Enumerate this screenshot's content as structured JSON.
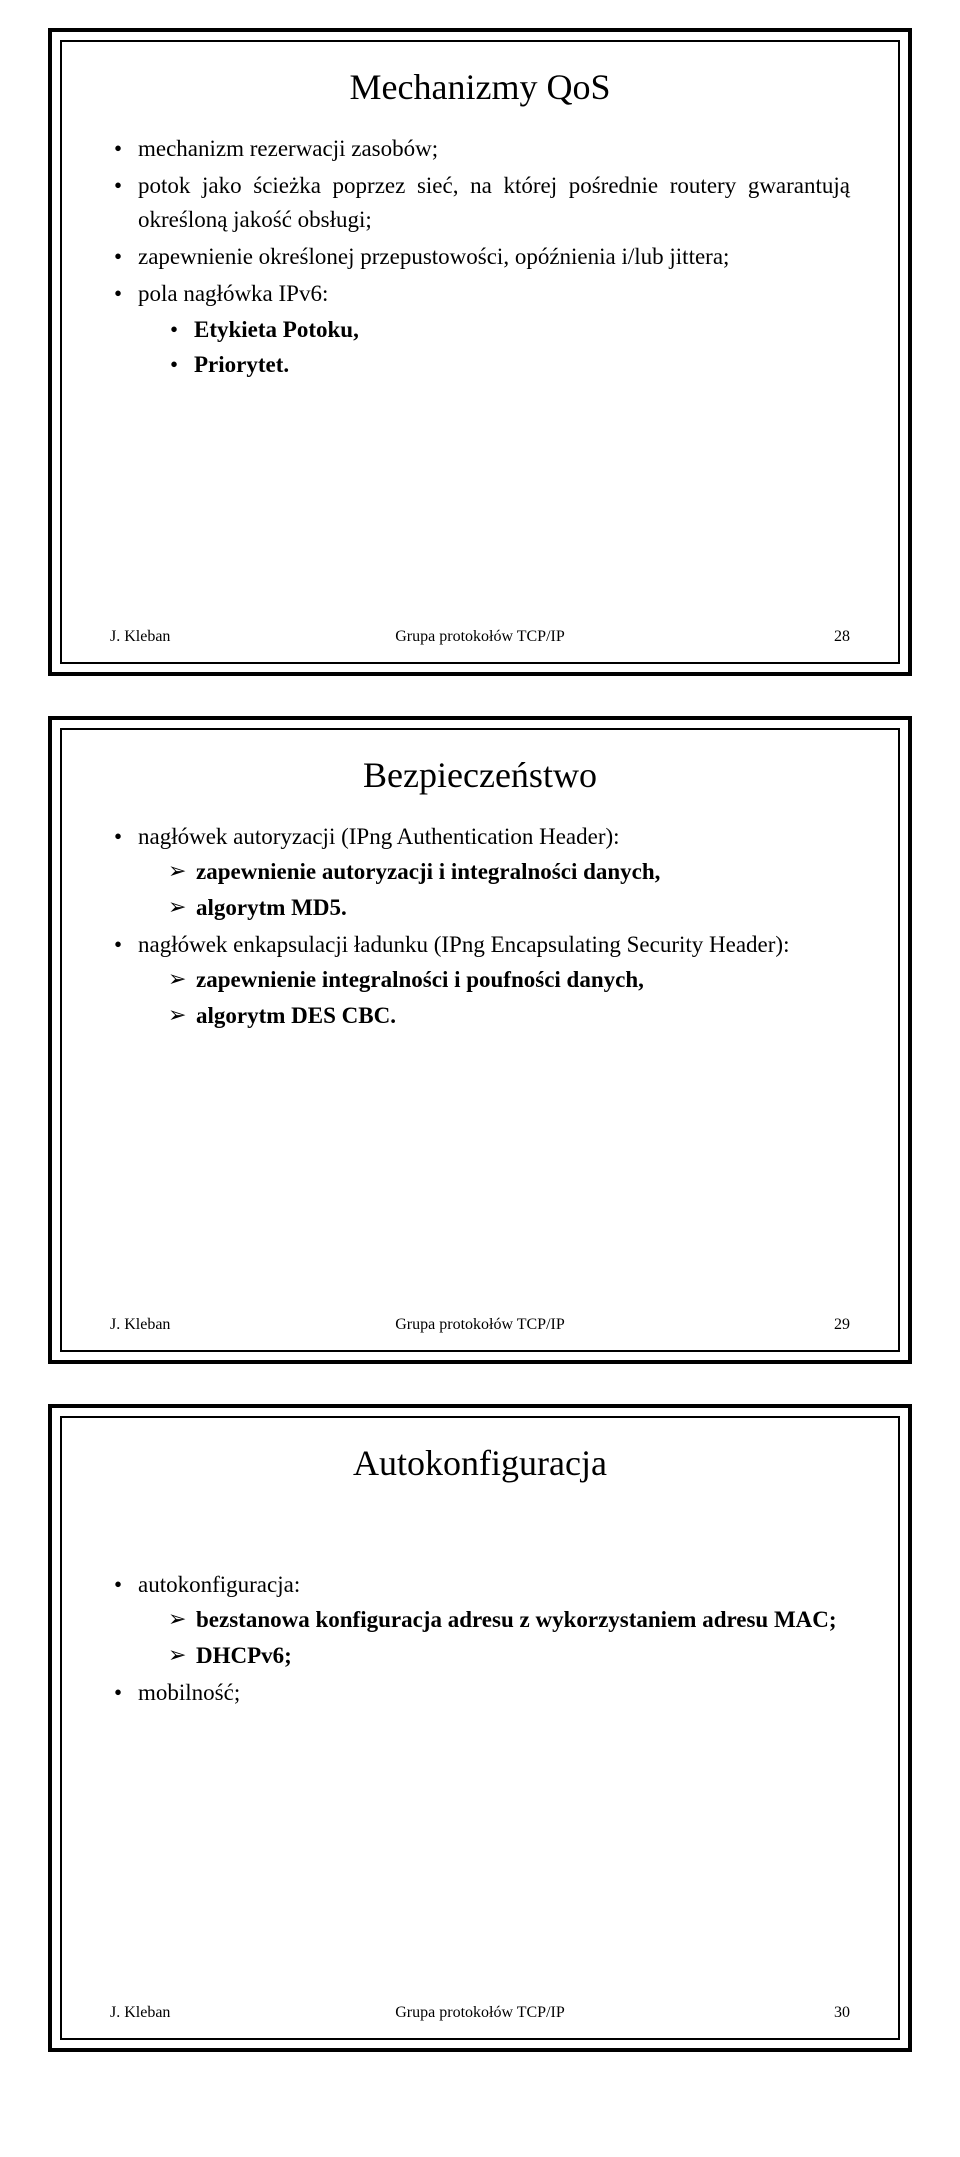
{
  "footer": {
    "author": "J. Kleban",
    "group": "Grupa protokołów TCP/IP"
  },
  "slides": [
    {
      "title": "Mechanizmy QoS",
      "page": "28",
      "items": [
        {
          "text": "mechanizm rezerwacji zasobów;",
          "bold": false
        },
        {
          "text": "potok jako ścieżka poprzez sieć, na której pośrednie routery gwarantują określoną jakość obsługi;",
          "bold": false
        },
        {
          "text": "zapewnienie określonej przepustowości, opóźnienia i/lub jittera;",
          "bold": false
        },
        {
          "text": "pola nagłówka IPv6:",
          "bold": false,
          "sub": [
            {
              "text": "Etykieta Potoku,",
              "bold": true
            },
            {
              "text": "Priorytet.",
              "bold": true
            }
          ]
        }
      ]
    },
    {
      "title": "Bezpieczeństwo",
      "page": "29",
      "items": [
        {
          "text": "nagłówek autoryzacji (IPng Authentication Header):",
          "bold": false,
          "chev": [
            {
              "text": "zapewnienie autoryzacji i integralności danych,",
              "bold": true
            },
            {
              "text": "algorytm MD5.",
              "bold": true
            }
          ]
        },
        {
          "text": "nagłówek enkapsulacji ładunku (IPng Encapsulating Security Header):",
          "bold": false,
          "chev": [
            {
              "text": "zapewnienie integralności i poufności danych,",
              "bold": true
            },
            {
              "text": "algorytm DES CBC.",
              "bold": true
            }
          ]
        }
      ]
    },
    {
      "title": "Autokonfiguracja",
      "page": "30",
      "spacer": true,
      "items": [
        {
          "text": "autokonfiguracja:",
          "bold": false,
          "chev": [
            {
              "text": "bezstanowa konfiguracja adresu z wykorzystaniem adresu MAC;",
              "bold": true
            },
            {
              "text": "DHCPv6;",
              "bold": true
            }
          ]
        },
        {
          "text": "mobilność;",
          "bold": false
        }
      ]
    }
  ]
}
